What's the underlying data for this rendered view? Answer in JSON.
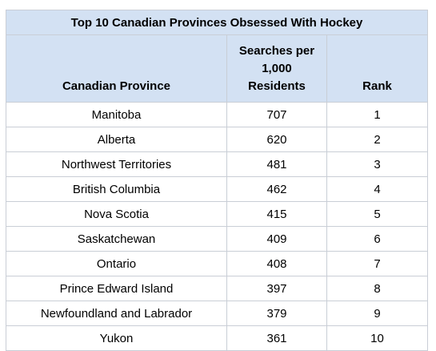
{
  "table": {
    "title": "Top 10 Canadian Provinces Obsessed With Hockey",
    "headers": {
      "province": "Canadian Province",
      "searches_line1": "Searches per",
      "searches_line2": "1,000",
      "searches_line3": "Residents",
      "rank": "Rank"
    },
    "rows": [
      {
        "province": "Manitoba",
        "searches": "707",
        "rank": "1"
      },
      {
        "province": "Alberta",
        "searches": "620",
        "rank": "2"
      },
      {
        "province": "Northwest Territories",
        "searches": "481",
        "rank": "3"
      },
      {
        "province": "British Columbia",
        "searches": "462",
        "rank": "4"
      },
      {
        "province": "Nova Scotia",
        "searches": "415",
        "rank": "5"
      },
      {
        "province": "Saskatchewan",
        "searches": "409",
        "rank": "6"
      },
      {
        "province": "Ontario",
        "searches": "408",
        "rank": "7"
      },
      {
        "province": "Prince Edward Island",
        "searches": "397",
        "rank": "8"
      },
      {
        "province": "Newfoundland and Labrador",
        "searches": "379",
        "rank": "9"
      },
      {
        "province": "Yukon",
        "searches": "361",
        "rank": "10"
      }
    ]
  },
  "colors": {
    "header_bg": "#d3e1f3",
    "border": "#c9ced6"
  }
}
